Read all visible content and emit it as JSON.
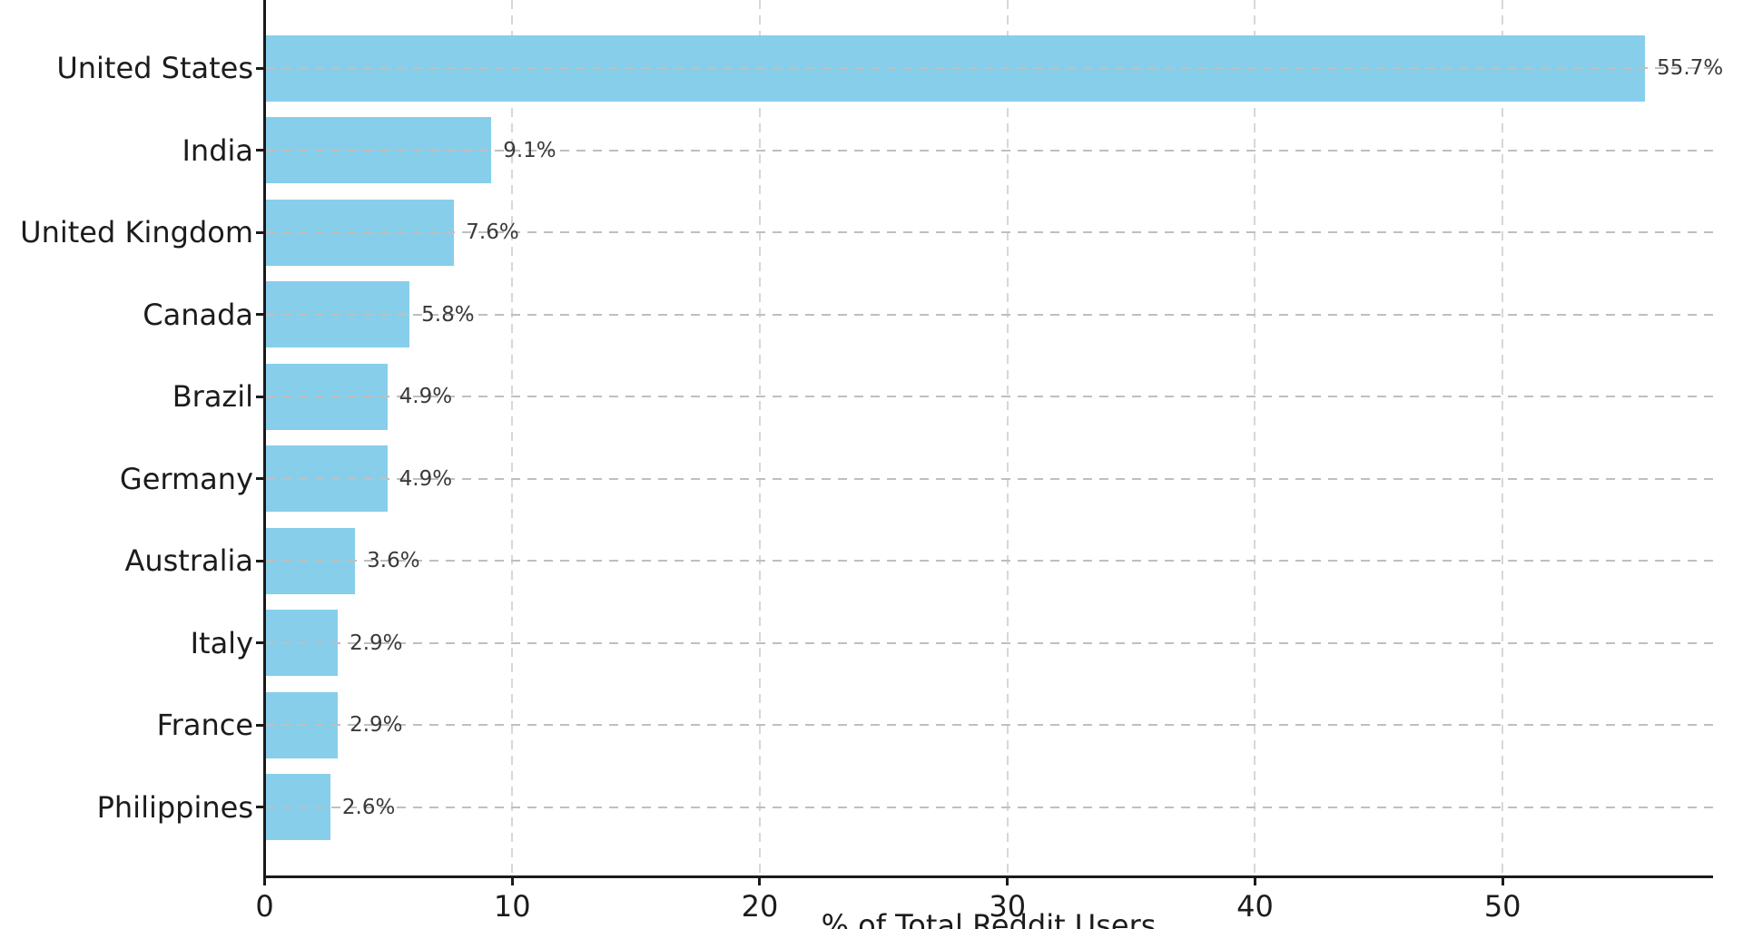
{
  "chart_data": {
    "type": "bar",
    "orientation": "horizontal",
    "title": "",
    "xlabel": "% of Total Reddit Users",
    "ylabel": "",
    "categories": [
      "United States",
      "India",
      "United Kingdom",
      "Canada",
      "Brazil",
      "Germany",
      "Australia",
      "Italy",
      "France",
      "Philippines"
    ],
    "values": [
      55.7,
      9.1,
      7.6,
      5.8,
      4.9,
      4.9,
      3.6,
      2.9,
      2.9,
      2.6
    ],
    "value_labels": [
      "55.7%",
      "9.1%",
      "7.6%",
      "5.8%",
      "4.9%",
      "4.9%",
      "3.6%",
      "2.9%",
      "2.9%",
      "2.6%"
    ],
    "x_ticks": [
      0,
      10,
      20,
      30,
      40,
      50
    ],
    "x_tick_labels": [
      "0",
      "10",
      "20",
      "30",
      "40",
      "50"
    ],
    "xlim": [
      0,
      58.5
    ],
    "grid": true,
    "grid_style": "dashed",
    "bar_color": "#87CEEB",
    "vertical_gridline_color": "#d7d7d7",
    "horizontal_gridline_color": "#bfbfbf",
    "axis_color": "#1a1a1a",
    "value_label_color": "#3a3a3a"
  }
}
